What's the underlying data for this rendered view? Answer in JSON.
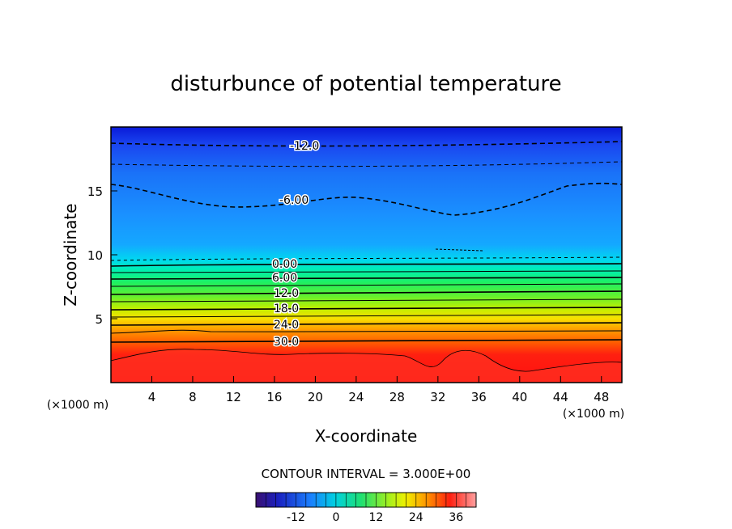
{
  "chart_data": {
    "type": "contour",
    "title": "disturbunce of potential temperature",
    "xlabel": "X-coordinate",
    "ylabel": "Z-coordinate",
    "x_unit": "(×1000 m)",
    "z_unit": "(×1000 m)",
    "xlim": [
      0,
      50
    ],
    "ylim": [
      0,
      20
    ],
    "x_ticks": [
      "4",
      "8",
      "12",
      "16",
      "20",
      "24",
      "28",
      "32",
      "36",
      "40",
      "44",
      "48"
    ],
    "y_ticks": [
      "5",
      "10",
      "15"
    ],
    "contour_interval_text": "CONTOUR INTERVAL = 3.000E+00",
    "contour_labels": [
      "-12.0",
      "-6.00",
      "0.00",
      "6.00",
      "12.0",
      "18.0",
      "24.0",
      "30.0"
    ],
    "colorbar": {
      "min": -24,
      "max": 42,
      "tick_labels": [
        "-12",
        "0",
        "12",
        "24",
        "36"
      ],
      "tick_values": [
        -12,
        0,
        12,
        24,
        36
      ]
    },
    "colors": {
      "low": "#1020a0",
      "mid_blue": "#1e90ff",
      "cyan": "#00e0e0",
      "green": "#20e060",
      "yellow": "#f0f000",
      "orange": "#ff8000",
      "red": "#ff1010"
    }
  }
}
